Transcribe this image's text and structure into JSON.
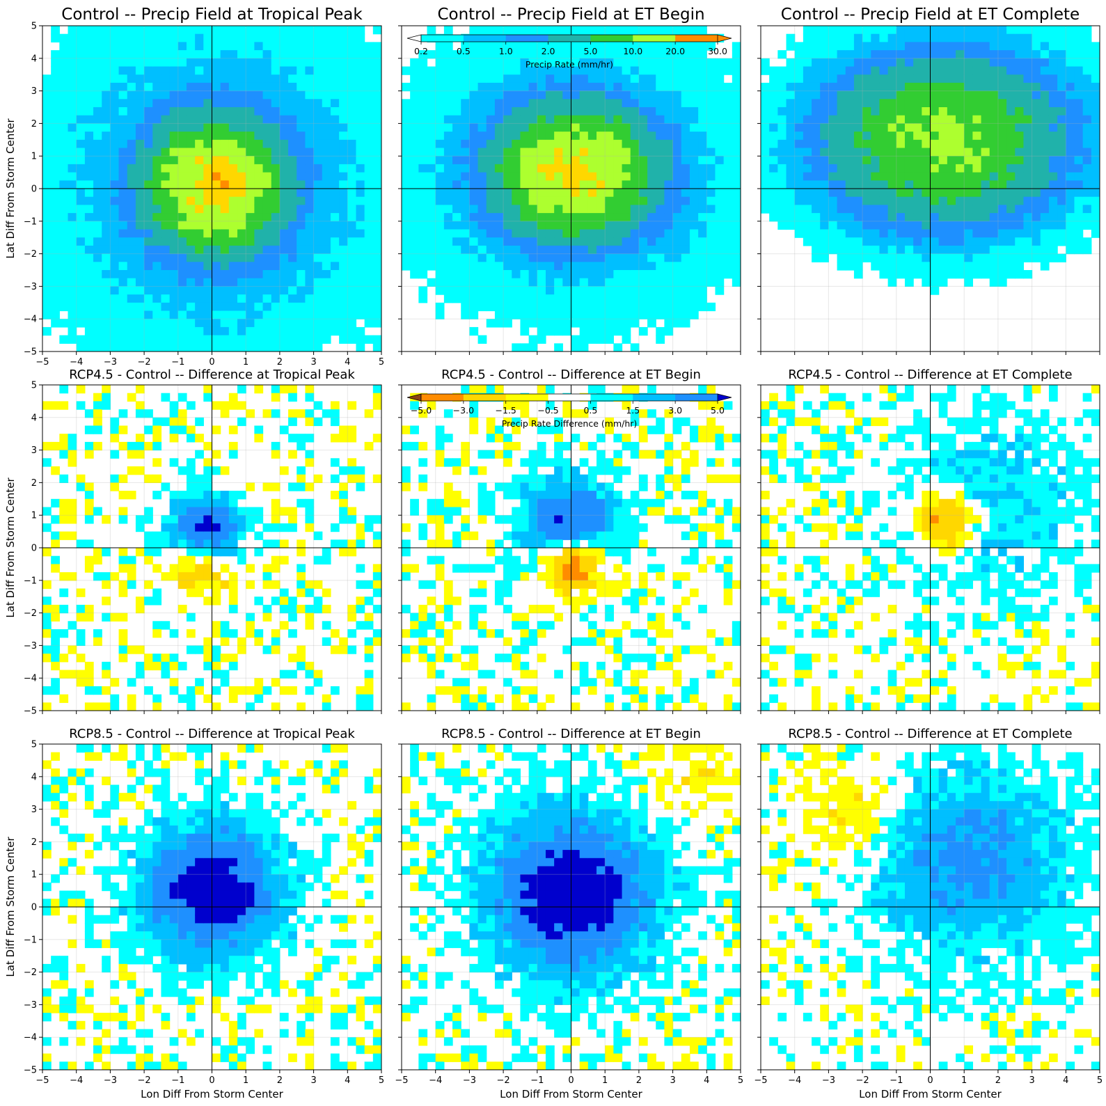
{
  "figure": {
    "xlabel": "Lon Diff From Storm Center",
    "ylabel": "Lat Diff From Storm Center"
  },
  "colorbars": {
    "precip": {
      "label": "Precip Rate (mm/hr)",
      "tick_labels": [
        "0.2",
        "0.5",
        "1.0",
        "2.0",
        "5.0",
        "10.0",
        "20.0",
        "30.0"
      ],
      "colors": [
        "#00ffff",
        "#00bfff",
        "#1e90ff",
        "#20b2aa",
        "#32cd32",
        "#adff2f",
        "#ffd700",
        "#ff8c00"
      ],
      "under_color": "#ffffff",
      "over_color": "#ff8c00"
    },
    "diff": {
      "label": "Precip Rate Difference (mm/hr)",
      "tick_labels": [
        "−5.0",
        "−3.0",
        "−1.5",
        "−0.5",
        "0.5",
        "1.5",
        "3.0",
        "5.0"
      ],
      "colors": [
        "#ff8c00",
        "#ffd700",
        "#ffff00",
        "#ffffff",
        "#00ffff",
        "#00bfff",
        "#1e90ff"
      ],
      "under_color": "#8b4513",
      "over_color": "#0000cd"
    }
  },
  "chart_data": [
    {
      "type": "heatmap",
      "title": "Control -- Precip Field at Tropical Peak",
      "xlabel": "",
      "ylabel": "Lat Diff From Storm Center",
      "xlim": [
        -5,
        5
      ],
      "ylim": [
        -5,
        5
      ],
      "grid": true,
      "colorbar": "precip",
      "x_ticks": [
        "−5",
        "−4",
        "−3",
        "−2",
        "−1",
        "0",
        "1",
        "2",
        "3",
        "4",
        "5"
      ],
      "y_ticks": [
        "−5",
        "−4",
        "−3",
        "−2",
        "−1",
        "0",
        "1",
        "2",
        "3",
        "4",
        "5"
      ],
      "field": {
        "peak_mm_hr": 25.0,
        "peak_x": 0.1,
        "peak_y": 0.1,
        "spread_x": 1.0,
        "spread_y": 1.0,
        "background_mm_hr": 0.55,
        "background_decay": 6.0
      }
    },
    {
      "type": "heatmap",
      "title": "Control -- Precip Field at ET Begin",
      "xlabel": "",
      "ylabel": "",
      "xlim": [
        -5,
        5
      ],
      "ylim": [
        -5,
        5
      ],
      "grid": true,
      "colorbar": "precip",
      "x_ticks": [],
      "y_ticks": [],
      "field": {
        "peak_mm_hr": 22.0,
        "peak_x": 0.1,
        "peak_y": 0.5,
        "spread_x": 1.2,
        "spread_y": 1.0,
        "background_mm_hr": 0.5,
        "background_decay": 5.0
      }
    },
    {
      "type": "heatmap",
      "title": "Control -- Precip Field at ET Complete",
      "xlabel": "",
      "ylabel": "",
      "xlim": [
        -5,
        5
      ],
      "ylim": [
        -5,
        5
      ],
      "grid": true,
      "colorbar": "precip",
      "x_ticks": [],
      "y_ticks": [],
      "field": {
        "peak_mm_hr": 11.0,
        "peak_x": 0.4,
        "peak_y": 1.5,
        "spread_x": 1.8,
        "spread_y": 1.3,
        "background_mm_hr": 0.35,
        "background_decay": 3.5
      }
    },
    {
      "type": "heatmap",
      "title": "RCP4.5 - Control -- Difference at Tropical Peak",
      "xlabel": "",
      "ylabel": "Lat Diff From Storm Center",
      "xlim": [
        -5,
        5
      ],
      "ylim": [
        -5,
        5
      ],
      "grid": true,
      "colorbar": "diff",
      "x_ticks": [],
      "y_ticks": [
        "−5",
        "−4",
        "−3",
        "−2",
        "−1",
        "0",
        "1",
        "2",
        "3",
        "4",
        "5"
      ],
      "field": {
        "pos_peak": 5.5,
        "pos_x": -0.2,
        "pos_y": 0.5,
        "pos_spread": 0.7,
        "neg_peak": -3.0,
        "neg_x": -0.3,
        "neg_y": -0.6,
        "neg_spread": 0.6
      }
    },
    {
      "type": "heatmap",
      "title": "RCP4.5 - Control -- Difference at ET Begin",
      "xlabel": "",
      "ylabel": "",
      "xlim": [
        -5,
        5
      ],
      "ylim": [
        -5,
        5
      ],
      "grid": true,
      "colorbar": "diff",
      "x_ticks": [],
      "y_ticks": [],
      "field": {
        "pos_peak": 5.5,
        "pos_x": -0.1,
        "pos_y": 0.8,
        "pos_spread": 0.9,
        "neg_peak": -5.5,
        "neg_x": 0.0,
        "neg_y": -0.4,
        "neg_spread": 0.6
      }
    },
    {
      "type": "heatmap",
      "title": "RCP4.5 - Control -- Difference at ET Complete",
      "xlabel": "",
      "ylabel": "",
      "xlim": [
        -5,
        5
      ],
      "ylim": [
        -5,
        5
      ],
      "grid": true,
      "colorbar": "diff",
      "x_ticks": [],
      "y_ticks": [],
      "field": {
        "pos_peak": 1.8,
        "pos_x": 1.8,
        "pos_y": 1.4,
        "pos_spread": 1.8,
        "neg_peak": -4.5,
        "neg_x": 0.5,
        "neg_y": 0.8,
        "neg_spread": 0.6
      }
    },
    {
      "type": "heatmap",
      "title": "RCP8.5 - Control -- Difference at Tropical Peak",
      "xlabel": "Lon Diff From Storm Center",
      "ylabel": "Lat Diff From Storm Center",
      "xlim": [
        -5,
        5
      ],
      "ylim": [
        -5,
        5
      ],
      "grid": true,
      "colorbar": "diff",
      "x_ticks": [
        "−5",
        "−4",
        "−3",
        "−2",
        "−1",
        "0",
        "1",
        "2",
        "3",
        "4",
        "5"
      ],
      "y_ticks": [
        "−5",
        "−4",
        "−3",
        "−2",
        "−1",
        "0",
        "1",
        "2",
        "3",
        "4",
        "5"
      ],
      "field": {
        "pos_peak": 7.0,
        "pos_x": 0.0,
        "pos_y": 0.5,
        "pos_spread": 1.3,
        "neg_peak": -1.0,
        "neg_x": -0.8,
        "neg_y": -0.6,
        "neg_spread": 0.3
      }
    },
    {
      "type": "heatmap",
      "title": "RCP8.5 - Control -- Difference at ET Begin",
      "xlabel": "Lon Diff From Storm Center",
      "ylabel": "",
      "xlim": [
        -5,
        5
      ],
      "ylim": [
        -5,
        5
      ],
      "grid": true,
      "colorbar": "diff",
      "x_ticks": [
        "−5",
        "−4",
        "−3",
        "−2",
        "−1",
        "0",
        "1",
        "2",
        "3",
        "4",
        "5"
      ],
      "y_ticks": [],
      "field": {
        "pos_peak": 7.0,
        "pos_x": 0.0,
        "pos_y": 0.4,
        "pos_spread": 1.6,
        "neg_peak": -1.0,
        "neg_x": 3.5,
        "neg_y": 4.2,
        "neg_spread": 1.0
      }
    },
    {
      "type": "heatmap",
      "title": "RCP8.5 - Control -- Difference at ET Complete",
      "xlabel": "Lon Diff From Storm Center",
      "ylabel": "",
      "xlim": [
        -5,
        5
      ],
      "ylim": [
        -5,
        5
      ],
      "grid": true,
      "colorbar": "diff",
      "x_ticks": [
        "−5",
        "−4",
        "−3",
        "−2",
        "−1",
        "0",
        "1",
        "2",
        "3",
        "4",
        "5"
      ],
      "y_ticks": [],
      "field": {
        "pos_peak": 3.5,
        "pos_x": 1.2,
        "pos_y": 1.4,
        "pos_spread": 1.9,
        "neg_peak": -1.5,
        "neg_x": -2.3,
        "neg_y": 2.8,
        "neg_spread": 1.0
      }
    }
  ]
}
